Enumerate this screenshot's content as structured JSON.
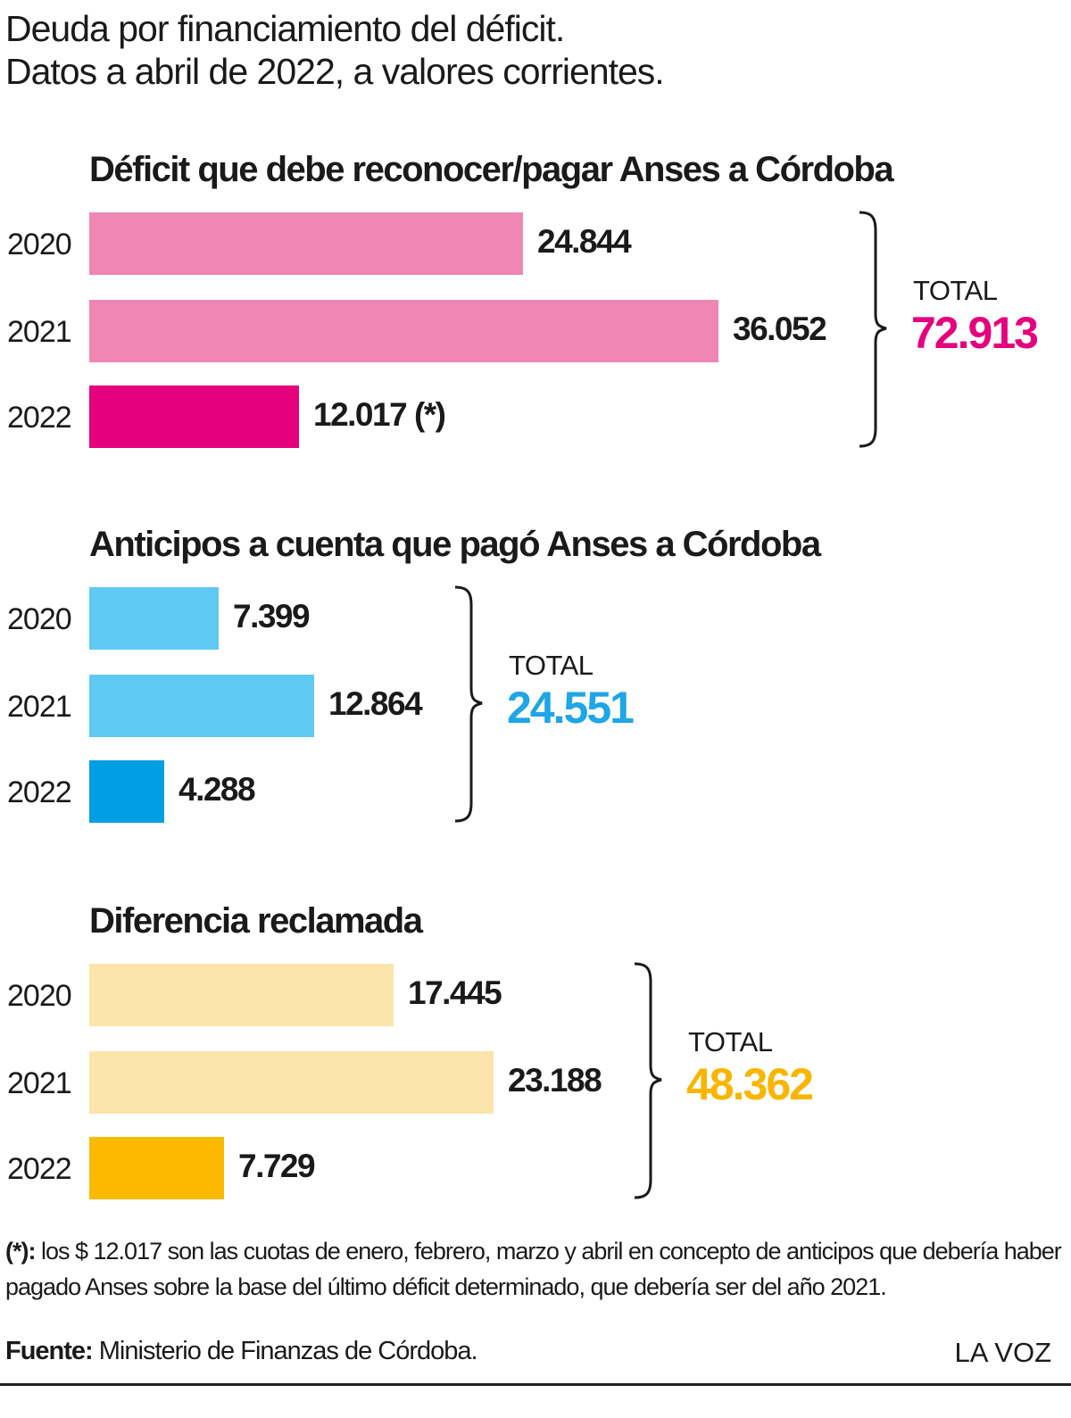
{
  "header": {
    "title_line1": "Deuda por financiamiento del déficit.",
    "title_line2": "Datos a abril de 2022, a valores corrientes."
  },
  "chart_data": [
    {
      "type": "bar",
      "title": "Déficit que debe reconocer/pagar Anses a Córdoba",
      "categories": [
        "2020",
        "2021",
        "2022"
      ],
      "values": [
        24844,
        36052,
        12017
      ],
      "value_labels": [
        "24.844",
        "36.052",
        "12.017 (*)"
      ],
      "colors": [
        "#ef87b5",
        "#ef87b5",
        "#e5007e"
      ],
      "total_label": "TOTAL",
      "total_value": "72.913",
      "total_color": "#e5007e"
    },
    {
      "type": "bar",
      "title": "Anticipos a cuenta que pagó Anses a Córdoba",
      "categories": [
        "2020",
        "2021",
        "2022"
      ],
      "values": [
        7399,
        12864,
        4288
      ],
      "value_labels": [
        "7.399",
        "12.864",
        "4.288"
      ],
      "colors": [
        "#5ec9f3",
        "#5ec9f3",
        "#009fe3"
      ],
      "total_label": "TOTAL",
      "total_value": "24.551",
      "total_color": "#1ea6e6"
    },
    {
      "type": "bar",
      "title": "Diferencia reclamada",
      "categories": [
        "2020",
        "2021",
        "2022"
      ],
      "values": [
        17445,
        23188,
        7729
      ],
      "value_labels": [
        "17.445",
        "23.188",
        "7.729"
      ],
      "colors": [
        "#fde4aa",
        "#fde4aa",
        "#fbba00"
      ],
      "total_label": "TOTAL",
      "total_value": "48.362",
      "total_color": "#f9b500"
    }
  ],
  "footnote": {
    "marker": "(*):",
    "text": " los $ 12.017 son las cuotas de enero, febrero, marzo y abril en concepto de anticipos que debería haber pagado Anses sobre la base del último déficit determinado, que debería ser del año 2021."
  },
  "source": {
    "label": "Fuente:",
    "text": " Ministerio de Finanzas de Córdoba."
  },
  "brand": "LA VOZ"
}
